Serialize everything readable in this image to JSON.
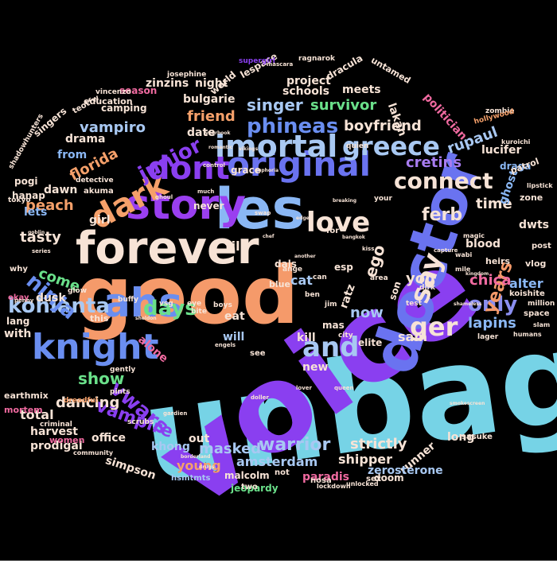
{
  "word_cloud": {
    "background": "#000000",
    "words": [
      {
        "text": "unbag",
        "color": "#76d3e6",
        "weight": 160
      },
      {
        "text": "voice",
        "color": "#8a3ff0",
        "weight": 150
      },
      {
        "text": "good",
        "color": "#f59a6a",
        "weight": 100
      },
      {
        "text": "doctor",
        "color": "#6a73f0",
        "weight": 78
      },
      {
        "text": "forever",
        "color": "#f7e3d6",
        "weight": 56
      },
      {
        "text": "les",
        "color": "#8ab7f4",
        "weight": 70
      },
      {
        "text": "story",
        "color": "#9a3ff0",
        "weight": 52
      },
      {
        "text": "original",
        "color": "#6a73f0",
        "weight": 42
      },
      {
        "text": "ahs",
        "color": "#6a8ef0",
        "weight": 50
      },
      {
        "text": "knight",
        "color": "#6a8ef0",
        "weight": 44
      },
      {
        "text": "dark",
        "color": "#f5a06a",
        "weight": 40
      },
      {
        "text": "dont",
        "color": "#8a3ff0",
        "weight": 40
      },
      {
        "text": "imortal",
        "color": "#a8c8f2",
        "weight": 38
      },
      {
        "text": "greece",
        "color": "#a8c8f2",
        "weight": 32
      },
      {
        "text": "love",
        "color": "#f7e3d6",
        "weight": 34
      },
      {
        "text": "connect",
        "color": "#f7e3d6",
        "weight": 28
      },
      {
        "text": "say",
        "color": "#f7e3d6",
        "weight": 34
      },
      {
        "text": "and",
        "color": "#a8c8f2",
        "weight": 34
      },
      {
        "text": "ger",
        "color": "#f7e3d6",
        "weight": 32
      },
      {
        "text": "junior",
        "color": "#8a3ff0",
        "weight": 26
      },
      {
        "text": "phineas",
        "color": "#6a8ef0",
        "weight": 26
      },
      {
        "text": "kohlanta",
        "color": "#a8c8f2",
        "weight": 26
      },
      {
        "text": "ninja",
        "color": "#6a8ef0",
        "weight": 26
      },
      {
        "text": "vwars",
        "color": "#8a3ff0",
        "weight": 26
      },
      {
        "text": "days",
        "color": "#6ae08a",
        "weight": 26
      },
      {
        "text": "only",
        "color": "#8a8ef0",
        "weight": 26
      },
      {
        "text": "ferb",
        "color": "#f7e3d6",
        "weight": 22
      },
      {
        "text": "warrior",
        "color": "#a8c8f2",
        "weight": 22
      },
      {
        "text": "years",
        "color": "#f59a6a",
        "weight": 22
      },
      {
        "text": "vampire",
        "color": "#8a3ff0",
        "weight": 22
      },
      {
        "text": "show",
        "color": "#6ae08a",
        "weight": 20
      },
      {
        "text": "singer",
        "color": "#a8c8f2",
        "weight": 20
      },
      {
        "text": "friend",
        "color": "#f5a06a",
        "weight": 18
      },
      {
        "text": "boyfriend",
        "color": "#f7e3d6",
        "weight": 18
      },
      {
        "text": "survivor",
        "color": "#6ae08a",
        "weight": 18
      },
      {
        "text": "vampiro",
        "color": "#a8c8f2",
        "weight": 18
      },
      {
        "text": "florida",
        "color": "#f5a06a",
        "weight": 18
      },
      {
        "text": "cretins",
        "color": "#a87cf0",
        "weight": 18
      },
      {
        "text": "rupaul",
        "color": "#a8c8f2",
        "weight": 18
      },
      {
        "text": "ego",
        "color": "#f7e3d6",
        "weight": 20
      },
      {
        "text": "lapins",
        "color": "#8ab7f4",
        "weight": 18
      },
      {
        "text": "strictly",
        "color": "#f7e3d6",
        "weight": 18
      },
      {
        "text": "masked",
        "color": "#a8c8f2",
        "weight": 18
      },
      {
        "text": "dancing",
        "color": "#f7e3d6",
        "weight": 18
      },
      {
        "text": "come",
        "color": "#6ae08a",
        "weight": 18
      },
      {
        "text": "now",
        "color": "#a8c8f2",
        "weight": 18
      },
      {
        "text": "you",
        "color": "#f7e3d6",
        "weight": 18
      },
      {
        "text": "time",
        "color": "#f7e3d6",
        "weight": 18
      },
      {
        "text": "chica",
        "color": "#f06aa0",
        "weight": 18
      },
      {
        "text": "tasty",
        "color": "#f7e3d6",
        "weight": 18
      },
      {
        "text": "peach",
        "color": "#f5a06a",
        "weight": 18
      },
      {
        "text": "young",
        "color": "#f5a06a",
        "weight": 16
      },
      {
        "text": "amsterdam",
        "color": "#a8c8f2",
        "weight": 16
      },
      {
        "text": "shipper",
        "color": "#f7e3d6",
        "weight": 16
      },
      {
        "text": "bulgarie",
        "color": "#f7e3d6",
        "weight": 14
      },
      {
        "text": "till",
        "color": "#f7e3d6",
        "weight": 16
      },
      {
        "text": "cat",
        "color": "#a8c8f2",
        "weight": 16
      },
      {
        "text": "total",
        "color": "#f7e3d6",
        "weight": 16
      },
      {
        "text": "alter",
        "color": "#8ab7f4",
        "weight": 16
      },
      {
        "text": "sam",
        "color": "#f7e3d6",
        "weight": 16
      },
      {
        "text": "lucifer",
        "color": "#f7e3d6",
        "weight": 14
      },
      {
        "text": "drama",
        "color": "#f7e3d6",
        "weight": 14
      },
      {
        "text": "from",
        "color": "#8ab7f4",
        "weight": 14
      },
      {
        "text": "girl",
        "color": "#f7e3d6",
        "weight": 14
      },
      {
        "text": "dawn",
        "color": "#f7e3d6",
        "weight": 14
      },
      {
        "text": "dusk",
        "color": "#f7e3d6",
        "weight": 14
      },
      {
        "text": "lets",
        "color": "#8ab7f4",
        "weight": 14
      },
      {
        "text": "date",
        "color": "#f7e3d6",
        "weight": 14
      },
      {
        "text": "alone",
        "color": "#f06aa0",
        "weight": 14
      },
      {
        "text": "new",
        "color": "#f7e3d6",
        "weight": 14
      },
      {
        "text": "kill",
        "color": "#f7e3d6",
        "weight": 14
      },
      {
        "text": "will",
        "color": "#a8c8f2",
        "weight": 14
      },
      {
        "text": "eat",
        "color": "#f7e3d6",
        "weight": 14
      },
      {
        "text": "runner",
        "color": "#f7e3d6",
        "weight": 14
      },
      {
        "text": "long",
        "color": "#f7e3d6",
        "weight": 14
      },
      {
        "text": "out",
        "color": "#f7e3d6",
        "weight": 14
      },
      {
        "text": "schools",
        "color": "#f7e3d6",
        "weight": 14
      },
      {
        "text": "project",
        "color": "#f7e3d6",
        "weight": 14
      },
      {
        "text": "zinzins",
        "color": "#f7e3d6",
        "weight": 14
      },
      {
        "text": "night",
        "color": "#f7e3d6",
        "weight": 14
      },
      {
        "text": "meets",
        "color": "#f7e3d6",
        "weight": 14
      },
      {
        "text": "lakan",
        "color": "#f7e3d6",
        "weight": 14
      },
      {
        "text": "politician",
        "color": "#f06aa0",
        "weight": 14
      },
      {
        "text": "blood",
        "color": "#f7e3d6",
        "weight": 14
      },
      {
        "text": "dwts",
        "color": "#f7e3d6",
        "weight": 14
      },
      {
        "text": "ghost",
        "color": "#8ab7f4",
        "weight": 14
      },
      {
        "text": "draga",
        "color": "#8ab7f4",
        "weight": 12
      },
      {
        "text": "ratz",
        "color": "#f7e3d6",
        "weight": 14
      },
      {
        "text": "esp",
        "color": "#f7e3d6",
        "weight": 12
      },
      {
        "text": "mas",
        "color": "#f7e3d6",
        "weight": 12
      },
      {
        "text": "son",
        "color": "#f7e3d6",
        "weight": 12
      },
      {
        "text": "dals",
        "color": "#f7e3d6",
        "weight": 12
      },
      {
        "text": "elite",
        "color": "#f7e3d6",
        "weight": 12
      },
      {
        "text": "doom",
        "color": "#f7e3d6",
        "weight": 12
      },
      {
        "text": "paradis",
        "color": "#f06aa0",
        "weight": 14
      },
      {
        "text": "zerosterone",
        "color": "#a8c8f2",
        "weight": 14
      },
      {
        "text": "malcolm",
        "color": "#f7e3d6",
        "weight": 12
      },
      {
        "text": "jeopardy",
        "color": "#6ae08a",
        "weight": 12
      },
      {
        "text": "simpson",
        "color": "#f7e3d6",
        "weight": 14
      },
      {
        "text": "khong",
        "color": "#a8c8f2",
        "weight": 14
      },
      {
        "text": "office",
        "color": "#f7e3d6",
        "weight": 14
      },
      {
        "text": "harvest",
        "color": "#f7e3d6",
        "weight": 14
      },
      {
        "text": "prodigal",
        "color": "#f7e3d6",
        "weight": 14
      },
      {
        "text": "with",
        "color": "#f7e3d6",
        "weight": 14
      },
      {
        "text": "lang",
        "color": "#f7e3d6",
        "weight": 12
      },
      {
        "text": "grace",
        "color": "#f7e3d6",
        "weight": 12
      },
      {
        "text": "never",
        "color": "#f7e3d6",
        "weight": 12
      },
      {
        "text": "singers",
        "color": "#f7e3d6",
        "weight": 12
      },
      {
        "text": "camping",
        "color": "#f7e3d6",
        "weight": 12
      },
      {
        "text": "education",
        "color": "#f7e3d6",
        "weight": 11
      },
      {
        "text": "season",
        "color": "#f06aa0",
        "weight": 12
      },
      {
        "text": "world",
        "color": "#f7e3d6",
        "weight": 12
      },
      {
        "text": "lespace",
        "color": "#f7e3d6",
        "weight": 12
      },
      {
        "text": "hanap",
        "color": "#f7e3d6",
        "weight": 12
      },
      {
        "text": "pogi",
        "color": "#f7e3d6",
        "weight": 12
      },
      {
        "text": "earthmix",
        "color": "#f7e3d6",
        "weight": 11
      },
      {
        "text": "mortem",
        "color": "#f06aa0",
        "weight": 11
      },
      {
        "text": "women",
        "color": "#f06aa0",
        "weight": 11
      },
      {
        "text": "scrubs",
        "color": "#f7e3d6",
        "weight": 9
      },
      {
        "text": "sasuke",
        "color": "#f7e3d6",
        "weight": 10
      },
      {
        "text": "hsmtmts",
        "color": "#a8c8f2",
        "weight": 10
      },
      {
        "text": "dracula",
        "color": "#f7e3d6",
        "weight": 12
      },
      {
        "text": "untamed",
        "color": "#f7e3d6",
        "weight": 11
      },
      {
        "text": "patrol",
        "color": "#f7e3d6",
        "weight": 11
      },
      {
        "text": "zone",
        "color": "#f7e3d6",
        "weight": 11
      },
      {
        "text": "vlog",
        "color": "#f7e3d6",
        "weight": 11
      },
      {
        "text": "heirs",
        "color": "#f7e3d6",
        "weight": 11
      },
      {
        "text": "koishite",
        "color": "#f7e3d6",
        "weight": 10
      },
      {
        "text": "post",
        "color": "#f7e3d6",
        "weight": 10
      },
      {
        "text": "million",
        "color": "#f7e3d6",
        "weight": 9
      },
      {
        "text": "space",
        "color": "#f7e3d6",
        "weight": 10
      },
      {
        "text": "shadowhunters",
        "color": "#f7e3d6",
        "weight": 9
      },
      {
        "text": "teotfw",
        "color": "#f7e3d6",
        "weight": 10
      },
      {
        "text": "vincenzo",
        "color": "#f7e3d6",
        "weight": 9
      },
      {
        "text": "supergirl",
        "color": "#8a3ff0",
        "weight": 9
      },
      {
        "text": "ragnarok",
        "color": "#f7e3d6",
        "weight": 9
      },
      {
        "text": "josephine",
        "color": "#f7e3d6",
        "weight": 9
      },
      {
        "text": "zombie",
        "color": "#f7e3d6",
        "weight": 9
      },
      {
        "text": "hollywood",
        "color": "#f5a06a",
        "weight": 9
      },
      {
        "text": "kuroichi",
        "color": "#f7e3d6",
        "weight": 8
      },
      {
        "text": "lipstick",
        "color": "#f7e3d6",
        "weight": 8
      },
      {
        "text": "akuma",
        "color": "#f7e3d6",
        "weight": 10
      },
      {
        "text": "okay",
        "color": "#f06aa0",
        "weight": 10
      },
      {
        "text": "why",
        "color": "#f7e3d6",
        "weight": 10
      },
      {
        "text": "tokyo",
        "color": "#f7e3d6",
        "weight": 9
      },
      {
        "text": "detective",
        "color": "#f7e3d6",
        "weight": 9
      },
      {
        "text": "criminal",
        "color": "#f7e3d6",
        "weight": 9
      },
      {
        "text": "community",
        "color": "#f7e3d6",
        "weight": 8
      },
      {
        "text": "dreadful",
        "color": "#f5a06a",
        "weight": 9
      },
      {
        "text": "pints",
        "color": "#f7e3d6",
        "weight": 9
      },
      {
        "text": "gently",
        "color": "#f7e3d6",
        "weight": 9
      },
      {
        "text": "buffy",
        "color": "#f7e3d6",
        "weight": 9
      },
      {
        "text": "glow",
        "color": "#f7e3d6",
        "weight": 9
      },
      {
        "text": "blue",
        "color": "#f7e3d6",
        "weight": 11
      },
      {
        "text": "this",
        "color": "#f7e3d6",
        "weight": 11
      },
      {
        "text": "two",
        "color": "#f7e3d6",
        "weight": 10
      },
      {
        "text": "not",
        "color": "#f7e3d6",
        "weight": 10
      },
      {
        "text": "see",
        "color": "#f7e3d6",
        "weight": 10
      },
      {
        "text": "for",
        "color": "#f7e3d6",
        "weight": 10
      },
      {
        "text": "nosa",
        "color": "#f7e3d6",
        "weight": 10
      },
      {
        "text": "sex",
        "color": "#f7e3d6",
        "weight": 10
      },
      {
        "text": "quien",
        "color": "#f7e3d6",
        "weight": 9
      },
      {
        "text": "your",
        "color": "#f7e3d6",
        "weight": 9
      },
      {
        "text": "vsg",
        "color": "#f7e3d6",
        "weight": 9
      },
      {
        "text": "eye",
        "color": "#f7e3d6",
        "weight": 9
      },
      {
        "text": "ange",
        "color": "#f7e3d6",
        "weight": 9
      },
      {
        "text": "boys",
        "color": "#f7e3d6",
        "weight": 9
      },
      {
        "text": "bite",
        "color": "#f7e3d6",
        "weight": 9
      },
      {
        "text": "ben",
        "color": "#f7e3d6",
        "weight": 9
      },
      {
        "text": "jim",
        "color": "#f7e3d6",
        "weight": 9
      },
      {
        "text": "can",
        "color": "#f7e3d6",
        "weight": 9
      },
      {
        "text": "dirk",
        "color": "#f7e3d6",
        "weight": 9
      },
      {
        "text": "area",
        "color": "#f7e3d6",
        "weight": 9
      },
      {
        "text": "city",
        "color": "#f7e3d6",
        "weight": 9
      },
      {
        "text": "test",
        "color": "#f7e3d6",
        "weight": 9
      },
      {
        "text": "lager",
        "color": "#f7e3d6",
        "weight": 9
      },
      {
        "text": "humans",
        "color": "#f7e3d6",
        "weight": 8
      },
      {
        "text": "slam",
        "color": "#f7e3d6",
        "weight": 8
      },
      {
        "text": "wabi",
        "color": "#f7e3d6",
        "weight": 8
      },
      {
        "text": "magic",
        "color": "#f7e3d6",
        "weight": 8
      },
      {
        "text": "mile",
        "color": "#f7e3d6",
        "weight": 8
      },
      {
        "text": "unlocked",
        "color": "#f7e3d6",
        "weight": 8
      },
      {
        "text": "lockdown",
        "color": "#f7e3d6",
        "weight": 8
      },
      {
        "text": "queen",
        "color": "#f7e3d6",
        "weight": 7
      },
      {
        "text": "kiss",
        "color": "#f7e3d6",
        "weight": 7
      },
      {
        "text": "control",
        "color": "#f7e3d6",
        "weight": 7
      },
      {
        "text": "much",
        "color": "#f7e3d6",
        "weight": 7
      },
      {
        "text": "ghoul",
        "color": "#f7e3d6",
        "weight": 7
      },
      {
        "text": "swap",
        "color": "#f7e3d6",
        "weight": 7
      },
      {
        "text": "penny",
        "color": "#f7e3d6",
        "weight": 7
      },
      {
        "text": "series",
        "color": "#f7e3d6",
        "weight": 7
      },
      {
        "text": "gardien",
        "color": "#f7e3d6",
        "weight": 7
      },
      {
        "text": "lover",
        "color": "#f7e3d6",
        "weight": 7
      },
      {
        "text": "engels",
        "color": "#f7e3d6",
        "weight": 7
      },
      {
        "text": "capture",
        "color": "#f7e3d6",
        "weight": 7
      },
      {
        "text": "doller",
        "color": "#f7e3d6",
        "weight": 7
      },
      {
        "text": "mascara",
        "color": "#f7e3d6",
        "weight": 7
      },
      {
        "text": "yearbook",
        "color": "#f7e3d6",
        "weight": 6
      },
      {
        "text": "goblin",
        "color": "#f7e3d6",
        "weight": 6
      },
      {
        "text": "sheldon",
        "color": "#f7e3d6",
        "weight": 6
      },
      {
        "text": "kingdom",
        "color": "#f7e3d6",
        "weight": 6
      },
      {
        "text": "shameless",
        "color": "#f7e3d6",
        "weight": 6
      },
      {
        "text": "bangkok",
        "color": "#f7e3d6",
        "weight": 6
      },
      {
        "text": "breaking",
        "color": "#f7e3d6",
        "weight": 6
      },
      {
        "text": "euphoria",
        "color": "#f7e3d6",
        "weight": 6
      },
      {
        "text": "romantic",
        "color": "#f7e3d6",
        "weight": 6
      },
      {
        "text": "borderland",
        "color": "#f7e3d6",
        "weight": 6
      },
      {
        "text": "smokescreen",
        "color": "#f7e3d6",
        "weight": 6
      },
      {
        "text": "chef",
        "color": "#f7e3d6",
        "weight": 6
      },
      {
        "text": "another",
        "color": "#f7e3d6",
        "weight": 6
      },
      {
        "text": "edge",
        "color": "#f7e3d6",
        "weight": 6
      },
      {
        "text": "drugs",
        "color": "#f7e3d6",
        "weight": 6
      },
      {
        "text": "vikings",
        "color": "#f7e3d6",
        "weight": 6
      }
    ]
  }
}
